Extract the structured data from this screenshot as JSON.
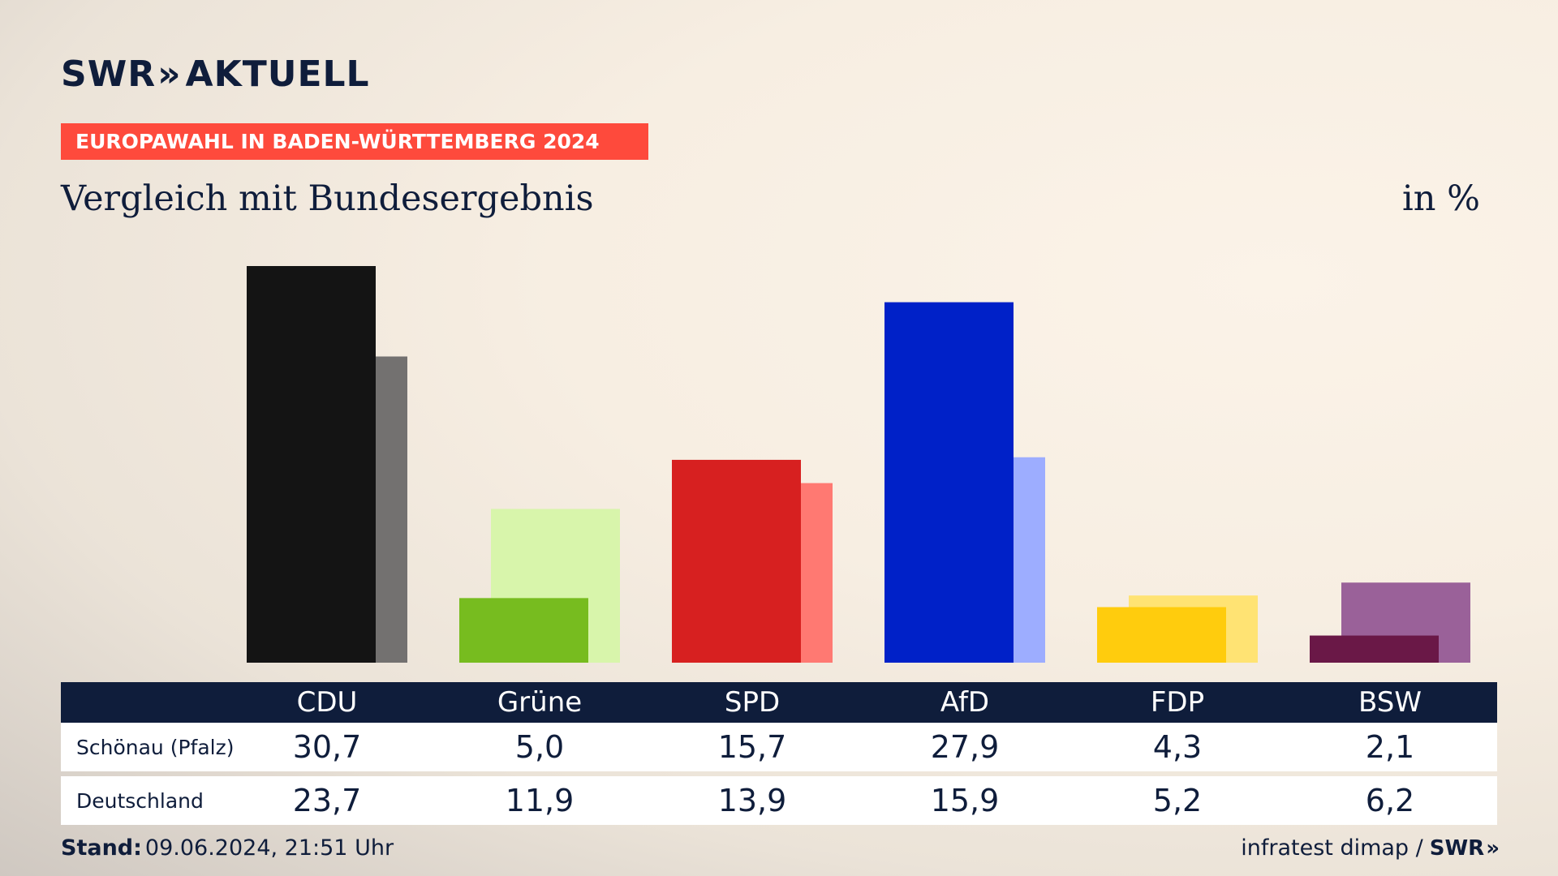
{
  "header": {
    "logo_text": "SWR",
    "logo_chevrons": "»",
    "logo_suffix": "AKTUELL",
    "badge": "EUROPAWAHL IN BADEN-WÜRTTEMBERG 2024",
    "subtitle": "Vergleich mit Bundesergebnis",
    "unit": "in %"
  },
  "colors": {
    "brand_dark": "#0f1d3b",
    "badge": "#fe4a3c"
  },
  "chart_data": {
    "type": "bar",
    "title": "Vergleich mit Bundesergebnis",
    "ylabel": "in %",
    "categories": [
      "CDU",
      "Grüne",
      "SPD",
      "AfD",
      "FDP",
      "BSW"
    ],
    "series": [
      {
        "name": "Schönau (Pfalz)",
        "values": [
          30.7,
          5.0,
          15.7,
          27.9,
          4.3,
          2.1
        ],
        "labels": [
          "30,7",
          "5,0",
          "15,7",
          "27,9",
          "4,3",
          "2,1"
        ],
        "colors": [
          "#141414",
          "#77bc1f",
          "#d72020",
          "#0021c8",
          "#ffcc0d",
          "#6a1847"
        ]
      },
      {
        "name": "Deutschland",
        "values": [
          23.7,
          11.9,
          13.9,
          15.9,
          5.2,
          6.2
        ],
        "labels": [
          "23,7",
          "11,9",
          "13,9",
          "15,9",
          "5,2",
          "6,2"
        ],
        "colors": [
          "#737170",
          "#d8f5ab",
          "#ff7972",
          "#9dadff",
          "#ffe373",
          "#9a6199"
        ]
      }
    ],
    "ylim": [
      0,
      30.7
    ],
    "grid": false,
    "legend": "none"
  },
  "footer": {
    "stand_label": "Stand:",
    "stand_value": "09.06.2024, 21:51 Uhr",
    "source": "infratest dimap /",
    "source_logo": "SWR",
    "source_logo_chevrons": "»"
  }
}
